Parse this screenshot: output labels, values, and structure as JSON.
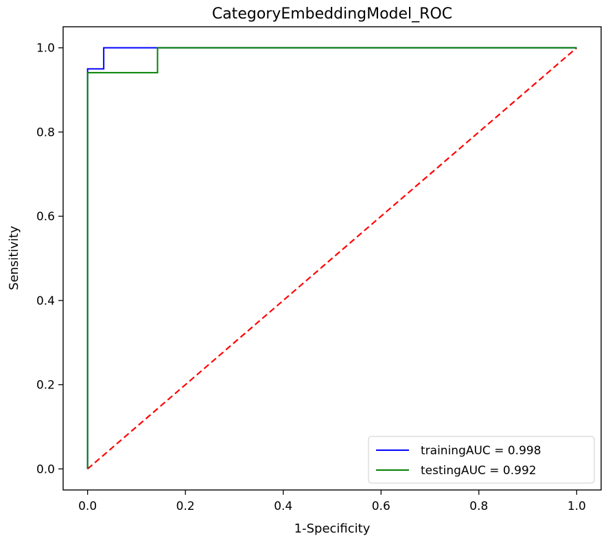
{
  "chart_data": {
    "type": "line",
    "title": "CategoryEmbeddingModel_ROC",
    "xlabel": "1-Specificity",
    "ylabel": "Sensitivity",
    "xlim": [
      -0.05,
      1.05
    ],
    "ylim": [
      -0.05,
      1.05
    ],
    "xticks": [
      0.0,
      0.2,
      0.4,
      0.6,
      0.8,
      1.0
    ],
    "xtick_labels": [
      "0.0",
      "0.2",
      "0.4",
      "0.6",
      "0.8",
      "1.0"
    ],
    "yticks": [
      0.0,
      0.2,
      0.4,
      0.6,
      0.8,
      1.0
    ],
    "ytick_labels": [
      "0.0",
      "0.2",
      "0.4",
      "0.6",
      "0.8",
      "1.0"
    ],
    "grid": false,
    "legend_position": "bottom-right",
    "series": [
      {
        "name": "trainingAUC = 0.998",
        "color": "#0000ff",
        "style": "solid",
        "x": [
          0.0,
          0.0,
          0.033,
          0.033,
          1.0
        ],
        "y": [
          0.0,
          0.95,
          0.95,
          1.0,
          1.0
        ]
      },
      {
        "name": "testingAUC = 0.992",
        "color": "#008000",
        "style": "solid",
        "x": [
          0.0,
          0.0,
          0.143,
          0.143,
          1.0
        ],
        "y": [
          0.0,
          0.941,
          0.941,
          1.0,
          1.0
        ]
      },
      {
        "color": "#ff0000",
        "style": "dashed",
        "x": [
          0.0,
          1.0
        ],
        "y": [
          0.0,
          1.0
        ]
      }
    ]
  }
}
